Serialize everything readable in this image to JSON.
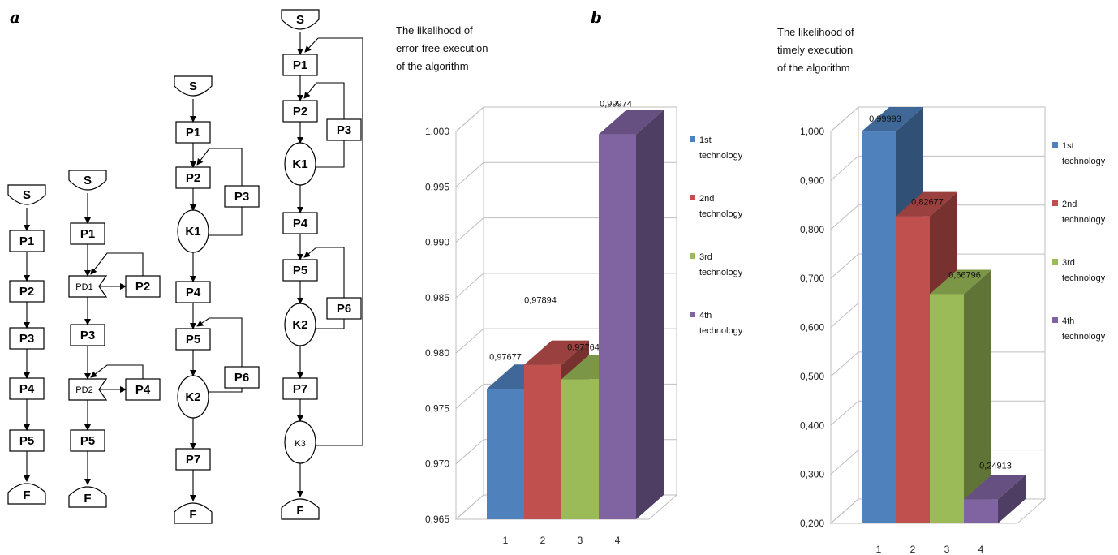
{
  "panels": {
    "a": "a",
    "b": "b"
  },
  "flowcharts": [
    {
      "nodes": [
        "S",
        "P1",
        "P2",
        "P3",
        "P4",
        "P5",
        "F"
      ]
    },
    {
      "nodes": [
        "S",
        "P1",
        "PD1",
        "P2",
        "P3",
        "PD2",
        "P4",
        "P5",
        "F"
      ]
    },
    {
      "nodes": [
        "S",
        "P1",
        "P2",
        "P3",
        "K1",
        "P4",
        "P5",
        "P6",
        "K2",
        "P7",
        "F"
      ]
    },
    {
      "nodes": [
        "S",
        "P1",
        "P2",
        "P3",
        "K1",
        "P4",
        "P5",
        "P6",
        "K2",
        "P7",
        "K3",
        "F"
      ]
    }
  ],
  "chart_data": [
    {
      "type": "bar",
      "title": "The likelihood of error-free execution of the algorithm",
      "title_lines": [
        "The likelihood of",
        "error-free execution",
        "of the algorithm"
      ],
      "categories": [
        "1",
        "2",
        "3",
        "4"
      ],
      "values": [
        0.97677,
        0.97894,
        0.97764,
        0.99974
      ],
      "value_labels": [
        "0,97677",
        "0,97894",
        "0,97764",
        "0,99974"
      ],
      "ylim": [
        0.965,
        1.0
      ],
      "yticks": [
        0.965,
        0.97,
        0.975,
        0.98,
        0.985,
        0.99,
        0.995,
        1.0
      ],
      "ytick_labels": [
        "0,965",
        "0,970",
        "0,975",
        "0,980",
        "0,985",
        "0,990",
        "0,995",
        "1,000"
      ],
      "grid": true,
      "legend_position": "right",
      "legend": [
        {
          "lines": [
            "1st",
            "technology"
          ],
          "color": "#4f81bd"
        },
        {
          "lines": [
            "2nd",
            "technology"
          ],
          "color": "#c0504d"
        },
        {
          "lines": [
            "3rd",
            "technology"
          ],
          "color": "#9bbb59"
        },
        {
          "lines": [
            "4th",
            "technology"
          ],
          "color": "#8064a2"
        }
      ]
    },
    {
      "type": "bar",
      "title": "The likelihood of timely execution of the algorithm",
      "title_lines": [
        "The likelihood of",
        "timely execution",
        "of the algorithm"
      ],
      "categories": [
        "1",
        "2",
        "3",
        "4"
      ],
      "values": [
        0.99993,
        0.82677,
        0.66796,
        0.24913
      ],
      "value_labels": [
        "0,99993",
        "0,82677",
        "0,66796",
        "0,24913"
      ],
      "ylim": [
        0.2,
        1.0
      ],
      "yticks": [
        0.2,
        0.3,
        0.4,
        0.5,
        0.6,
        0.7,
        0.8,
        0.9,
        1.0
      ],
      "ytick_labels": [
        "0,200",
        "0,300",
        "0,400",
        "0,500",
        "0,600",
        "0,700",
        "0,800",
        "0,900",
        "1,000"
      ],
      "grid": true,
      "legend_position": "right",
      "legend": [
        {
          "lines": [
            "1st",
            "technology"
          ],
          "color": "#4f81bd"
        },
        {
          "lines": [
            "2nd",
            "technology"
          ],
          "color": "#c0504d"
        },
        {
          "lines": [
            "3rd",
            "technology"
          ],
          "color": "#9bbb59"
        },
        {
          "lines": [
            "4th",
            "technology"
          ],
          "color": "#8064a2"
        }
      ]
    }
  ]
}
